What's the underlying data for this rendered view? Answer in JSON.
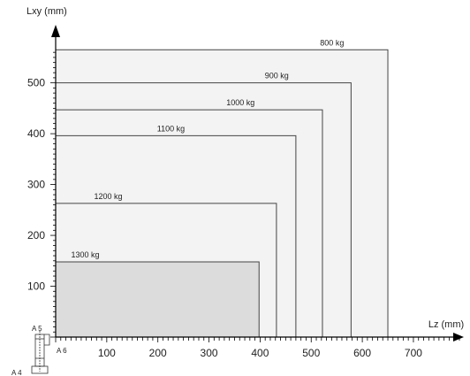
{
  "chart_data": {
    "type": "area",
    "xlabel": "Lz (mm)",
    "ylabel": "Lxy (mm)",
    "xlim": [
      0,
      800
    ],
    "ylim": [
      0,
      570
    ],
    "x_ticks": [
      100,
      200,
      300,
      400,
      500,
      600,
      700
    ],
    "y_ticks": [
      100,
      200,
      300,
      400,
      500
    ],
    "series": [
      {
        "name": "800 kg",
        "lz": 650,
        "lxy": 565
      },
      {
        "name": "900 kg",
        "lz": 578,
        "lxy": 500
      },
      {
        "name": "1000 kg",
        "lz": 522,
        "lxy": 447
      },
      {
        "name": "1100 kg",
        "lz": 470,
        "lxy": 396
      },
      {
        "name": "1200 kg",
        "lz": 432,
        "lxy": 263
      },
      {
        "name": "1300 kg",
        "lz": 398,
        "lxy": 148
      }
    ],
    "annotations": [
      "A 5",
      "A 6",
      "A 4"
    ],
    "colors": {
      "envelope_fill": "#f3f3f3",
      "inner_fill": "#dcdcdc",
      "line": "#444444"
    }
  }
}
